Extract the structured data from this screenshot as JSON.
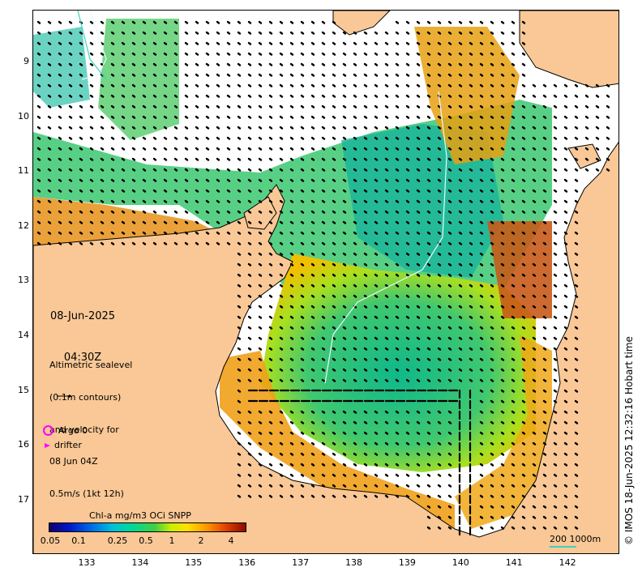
{
  "map": {
    "lat_ticks": [
      "9",
      "10",
      "11",
      "12",
      "13",
      "14",
      "15",
      "16",
      "17"
    ],
    "lon_ticks": [
      "133",
      "134",
      "135",
      "136",
      "137",
      "138",
      "139",
      "140",
      "141",
      "142"
    ],
    "lat_values": [
      -9,
      -10,
      -11,
      -12,
      -13,
      -14,
      -15,
      -16,
      -17
    ],
    "lon_values": [
      133,
      134,
      135,
      136,
      137,
      138,
      139,
      140,
      141,
      142
    ],
    "land_color": "#f9c896",
    "vector_color": "#000000"
  },
  "info": {
    "date": "08-Jun-2025",
    "time": "04:30Z",
    "description_lines": [
      "Altimetric sealevel",
      "(0.1m contours)",
      "and velocity for",
      "08 Jun 04Z",
      "0.5m/s (1kt 12h)"
    ]
  },
  "legend": {
    "argo_label": "Argo 0",
    "drifter_label": "drifter",
    "marker_color": "#ff00ff"
  },
  "colorbar": {
    "title": "Chl-a mg/m3 OCi SNPP",
    "ticks": [
      "0.05",
      "0.1",
      "0.25",
      "0.5",
      "1",
      "2",
      "4"
    ]
  },
  "scale": {
    "label": "200  1000m",
    "color": "#40d0c0"
  },
  "watermark": "© IMOS 18-Jun-2025 12:32:16 Hobart time"
}
